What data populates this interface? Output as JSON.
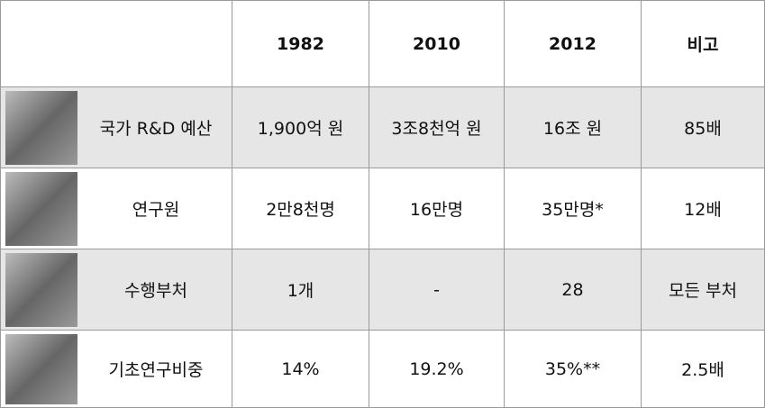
{
  "table": {
    "columns": [
      "1982",
      "2010",
      "2012",
      "비고"
    ],
    "rows": [
      {
        "label": "국가 R&D 예산",
        "cells": [
          "1,900억 원",
          "3조8천억 원",
          "16조 원",
          "85배"
        ]
      },
      {
        "label": "연구원",
        "cells": [
          "2만8천명",
          "16만명",
          "35만명*",
          "12배"
        ]
      },
      {
        "label": "수행부처",
        "cells": [
          "1개",
          "-",
          "28",
          "모든 부처"
        ]
      },
      {
        "label": "기초연구비중",
        "cells": [
          "14%",
          "19.2%",
          "35%**",
          "2.5배"
        ]
      }
    ]
  }
}
